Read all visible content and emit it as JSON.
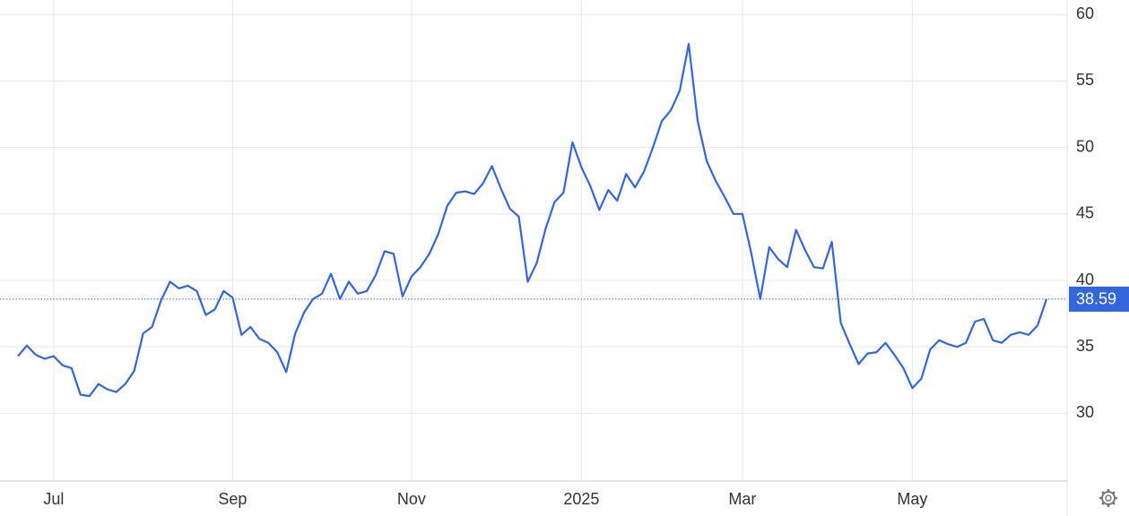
{
  "chart_data": {
    "type": "line",
    "categories": [
      null,
      null,
      null,
      null,
      "Jul",
      null,
      null,
      null,
      null,
      null,
      null,
      null,
      null,
      null,
      null,
      null,
      null,
      null,
      null,
      null,
      null,
      null,
      null,
      null,
      "Sep",
      null,
      null,
      null,
      null,
      null,
      null,
      null,
      null,
      null,
      null,
      null,
      null,
      null,
      null,
      null,
      null,
      null,
      null,
      null,
      "Nov",
      null,
      null,
      null,
      null,
      null,
      null,
      null,
      null,
      null,
      null,
      null,
      null,
      null,
      null,
      null,
      null,
      null,
      null,
      "2025",
      null,
      null,
      null,
      null,
      null,
      null,
      null,
      null,
      null,
      null,
      null,
      null,
      null,
      null,
      null,
      null,
      null,
      "Mar",
      null,
      null,
      null,
      null,
      null,
      null,
      null,
      null,
      null,
      null,
      null,
      null,
      null,
      null,
      null,
      null,
      null,
      null,
      "May",
      null,
      null,
      null,
      null,
      null,
      null,
      null,
      null,
      null,
      null,
      null,
      null,
      null,
      null,
      null
    ],
    "values": [
      34.3,
      35.1,
      34.4,
      34.1,
      34.3,
      33.6,
      33.4,
      31.4,
      31.3,
      32.2,
      31.8,
      31.6,
      32.2,
      33.2,
      36.0,
      36.5,
      38.5,
      39.9,
      39.4,
      39.6,
      39.2,
      37.4,
      37.8,
      39.2,
      38.7,
      35.9,
      36.5,
      35.6,
      35.3,
      34.6,
      33.1,
      36.0,
      37.6,
      38.6,
      39.0,
      40.5,
      38.6,
      39.9,
      39.0,
      39.2,
      40.4,
      42.2,
      42.0,
      38.8,
      40.3,
      41.0,
      42.0,
      43.5,
      45.6,
      46.6,
      46.7,
      46.5,
      47.3,
      48.6,
      46.9,
      45.4,
      44.8,
      39.9,
      41.3,
      43.9,
      45.9,
      46.6,
      50.4,
      48.5,
      47.1,
      45.3,
      46.8,
      46.0,
      48.0,
      47.0,
      48.2,
      50.0,
      52.0,
      52.8,
      54.3,
      57.8,
      52.0,
      49.0,
      47.5,
      46.3,
      45.0,
      45.0,
      42.0,
      38.6,
      42.5,
      41.6,
      41.0,
      43.8,
      42.3,
      41.0,
      40.9,
      42.9,
      36.8,
      35.2,
      33.7,
      34.5,
      34.6,
      35.3,
      34.4,
      33.4,
      31.9,
      32.6,
      34.8,
      35.5,
      35.2,
      35.0,
      35.3,
      36.9,
      37.1,
      35.5,
      35.3,
      35.9,
      36.1,
      35.9,
      36.6,
      38.59
    ],
    "color": "#3366dd",
    "ylim": [
      24.9,
      61.1
    ],
    "yticks": [
      30,
      35,
      40,
      45,
      50,
      55,
      60
    ],
    "grid": true
  }
}
